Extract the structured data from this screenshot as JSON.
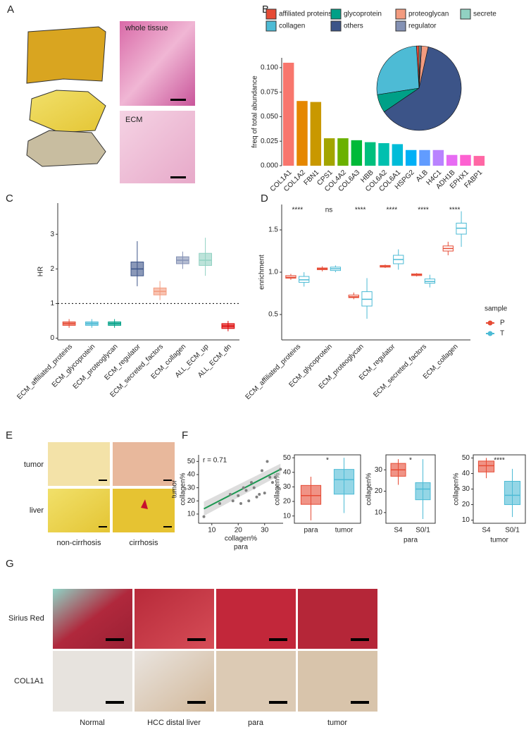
{
  "figure": {
    "panels": [
      "A",
      "B",
      "C",
      "D",
      "E",
      "F",
      "G"
    ],
    "a_labels": [
      "whole tissue",
      "ECM"
    ],
    "e_rows": [
      "tumor",
      "liver"
    ],
    "e_cols": [
      "non-cirrhosis",
      "cirrhosis"
    ],
    "g_rows": [
      "Sirius Red",
      "COL1A1"
    ],
    "g_cols": [
      "Normal",
      "HCC distal liver",
      "para",
      "tumor"
    ]
  },
  "chart_data": [
    {
      "type": "bar",
      "ylabel": "freq of total abundance",
      "categories": [
        "COL1A1",
        "COL1A2",
        "FBN1",
        "CPS1",
        "COL4A2",
        "COL6A3",
        "HBB",
        "COL6A2",
        "COL6A1",
        "HSPG2",
        "ALB",
        "H4C1",
        "ADH1B",
        "EPHX1",
        "FABP1"
      ],
      "values": [
        0.105,
        0.066,
        0.065,
        0.028,
        0.028,
        0.026,
        0.024,
        0.023,
        0.022,
        0.016,
        0.016,
        0.016,
        0.011,
        0.011,
        0.01
      ],
      "colors": [
        "#f8766d",
        "#e58700",
        "#c99800",
        "#a3a500",
        "#6bb100",
        "#00ba38",
        "#00bf7d",
        "#00c0af",
        "#00bcd8",
        "#00b0f6",
        "#619cff",
        "#b983ff",
        "#e76bf3",
        "#fd61d1",
        "#ff67a4"
      ],
      "ylim": [
        0,
        0.11
      ],
      "yticks": [
        {
          "value": 0,
          "label": "0.000"
        },
        0.025,
        {
          "value": 0.05,
          "label": "0.050"
        },
        0.075,
        {
          "value": 0.1,
          "label": "0.100"
        }
      ]
    },
    {
      "type": "pie",
      "categories": [
        "affiliated proteins",
        "collagen",
        "glycoprotein",
        "others",
        "proteoglycan",
        "regulator",
        "secrete"
      ],
      "values": [
        1,
        26.5,
        7,
        62,
        2.5,
        0.5,
        0.5
      ],
      "colors": [
        "#e64b35",
        "#4dbbd5",
        "#00a087",
        "#3c5488",
        "#f39b7f",
        "#8491b4",
        "#91d1c2"
      ]
    },
    {
      "type": "box",
      "ylabel": "HR",
      "hline": 1,
      "categories": [
        "ECM_affiliated_proteins",
        "ECM_glycoprotein",
        "ECM_proteoglycan",
        "ECM_regulator",
        "ECM_secreted_factors",
        "ECM_collagen",
        "ALL_ECM_up",
        "ALL_ECM_dn"
      ],
      "colors": [
        "#e64b35",
        "#4dbbd5",
        "#00a087",
        "#3c5488",
        "#f39b7f",
        "#8491b4",
        "#91d1c2",
        "#dc0000"
      ],
      "boxes": [
        {
          "low": 0.3,
          "q1": 0.37,
          "median": 0.42,
          "q3": 0.47,
          "high": 0.55
        },
        {
          "low": 0.3,
          "q1": 0.37,
          "median": 0.42,
          "q3": 0.47,
          "high": 0.55
        },
        {
          "low": 0.3,
          "q1": 0.37,
          "median": 0.42,
          "q3": 0.47,
          "high": 0.55
        },
        {
          "low": 1.5,
          "q1": 1.8,
          "median": 2.0,
          "q3": 2.2,
          "high": 2.8
        },
        {
          "low": 1.1,
          "q1": 1.25,
          "median": 1.35,
          "q3": 1.45,
          "high": 1.65
        },
        {
          "low": 2.0,
          "q1": 2.15,
          "median": 2.25,
          "q3": 2.35,
          "high": 2.5
        },
        {
          "low": 1.8,
          "q1": 2.1,
          "median": 2.25,
          "q3": 2.45,
          "high": 2.9
        },
        {
          "low": 0.2,
          "q1": 0.28,
          "median": 0.35,
          "q3": 0.42,
          "high": 0.5
        }
      ],
      "ylim": [
        -0.05,
        3.9
      ],
      "yticks": [
        0,
        1,
        2,
        3
      ]
    },
    {
      "type": "groupbox",
      "ylabel": "enrichment",
      "legend_title": "sample",
      "categories": [
        "ECM_affiliated_proteins",
        "ECM_glycoprotein",
        "ECM_proteoglycan",
        "ECM_regulator",
        "ECM_secreted_factors",
        "ECM_collagen"
      ],
      "significance": [
        "****",
        "ns",
        "****",
        "****",
        "****",
        "****"
      ],
      "series": [
        {
          "name": "P",
          "color": "#e64b35",
          "boxes": [
            {
              "low": 0.91,
              "q1": 0.93,
              "median": 0.94,
              "q3": 0.96,
              "high": 0.98
            },
            {
              "low": 1.01,
              "q1": 1.03,
              "median": 1.04,
              "q3": 1.05,
              "high": 1.07
            },
            {
              "low": 0.68,
              "q1": 0.7,
              "median": 0.71,
              "q3": 0.73,
              "high": 0.76
            },
            {
              "low": 1.05,
              "q1": 1.06,
              "median": 1.07,
              "q3": 1.08,
              "high": 1.09
            },
            {
              "low": 0.95,
              "q1": 0.96,
              "median": 0.97,
              "q3": 0.98,
              "high": 0.99
            },
            {
              "low": 1.2,
              "q1": 1.25,
              "median": 1.28,
              "q3": 1.31,
              "high": 1.36
            }
          ]
        },
        {
          "name": "T",
          "color": "#4dbbd5",
          "boxes": [
            {
              "low": 0.83,
              "q1": 0.88,
              "median": 0.91,
              "q3": 0.95,
              "high": 1.0
            },
            {
              "low": 1.0,
              "q1": 1.02,
              "median": 1.04,
              "q3": 1.06,
              "high": 1.08
            },
            {
              "low": 0.45,
              "q1": 0.6,
              "median": 0.68,
              "q3": 0.77,
              "high": 0.93
            },
            {
              "low": 1.03,
              "q1": 1.1,
              "median": 1.15,
              "q3": 1.2,
              "high": 1.27
            },
            {
              "low": 0.82,
              "q1": 0.87,
              "median": 0.89,
              "q3": 0.92,
              "high": 0.97
            },
            {
              "low": 1.3,
              "q1": 1.45,
              "median": 1.52,
              "q3": 1.58,
              "high": 1.72
            }
          ]
        }
      ],
      "ylim": [
        0.2,
        1.8
      ],
      "yticks": [
        0.5,
        {
          "value": 1.0,
          "label": "1.0"
        },
        1.5
      ]
    },
    {
      "type": "scatter",
      "annotation": "r = 0.71",
      "xlabel": [
        "collagen%",
        "para"
      ],
      "ylabel": [
        "tumor",
        "collagen%"
      ],
      "x": [
        7,
        13,
        17,
        18,
        20,
        21,
        22,
        23,
        24,
        25,
        26,
        27,
        28,
        29,
        30,
        31,
        32,
        33,
        34,
        35,
        36
      ],
      "y": [
        8,
        18,
        25,
        20,
        24,
        18,
        30,
        28,
        20,
        34,
        30,
        23,
        25,
        43,
        26,
        50,
        38,
        34,
        38,
        30,
        44
      ],
      "fit": {
        "x": [
          7,
          36
        ],
        "y": [
          14,
          44
        ]
      },
      "color": "#808080",
      "fit_color": "#1a9850",
      "xlim": [
        5,
        37
      ],
      "xticks": [
        10,
        20,
        30
      ],
      "ylim": [
        3,
        55
      ],
      "yticks": [
        10,
        20,
        30,
        40,
        50
      ]
    },
    {
      "type": "box",
      "ylabel": "collagen%",
      "significance": [
        "*"
      ],
      "categories": [
        "para",
        "tumor"
      ],
      "colors": [
        "#e64b35",
        "#4dbbd5"
      ],
      "boxes": [
        {
          "low": 7,
          "q1": 18,
          "median": 24,
          "q3": 31,
          "high": 37
        },
        {
          "low": 12,
          "q1": 25,
          "median": 35,
          "q3": 42,
          "high": 50
        }
      ],
      "ylim": [
        5,
        52
      ],
      "yticks": [
        10,
        20,
        30,
        40,
        50
      ]
    },
    {
      "type": "box",
      "ylabel": "collagen%",
      "xlabel": "para",
      "significance": [
        "*"
      ],
      "categories": [
        "S4",
        "S0/1"
      ],
      "colors": [
        "#e64b35",
        "#4dbbd5"
      ],
      "boxes": [
        {
          "low": 23,
          "q1": 27,
          "median": 30,
          "q3": 33,
          "high": 35
        },
        {
          "low": 7,
          "q1": 16,
          "median": 21,
          "q3": 24,
          "high": 35
        }
      ],
      "ylim": [
        5,
        37
      ],
      "yticks": [
        10,
        20,
        30
      ]
    },
    {
      "type": "box",
      "ylabel": "collagen%",
      "xlabel": "tumor",
      "significance": [
        "****"
      ],
      "categories": [
        "S4",
        "S0/1"
      ],
      "colors": [
        "#e64b35",
        "#4dbbd5"
      ],
      "boxes": [
        {
          "low": 37,
          "q1": 41,
          "median": 45,
          "q3": 48,
          "high": 50
        },
        {
          "low": 12,
          "q1": 20,
          "median": 26,
          "q3": 35,
          "high": 43
        }
      ],
      "ylim": [
        8,
        52
      ],
      "yticks": [
        10,
        20,
        30,
        40,
        50
      ]
    }
  ]
}
